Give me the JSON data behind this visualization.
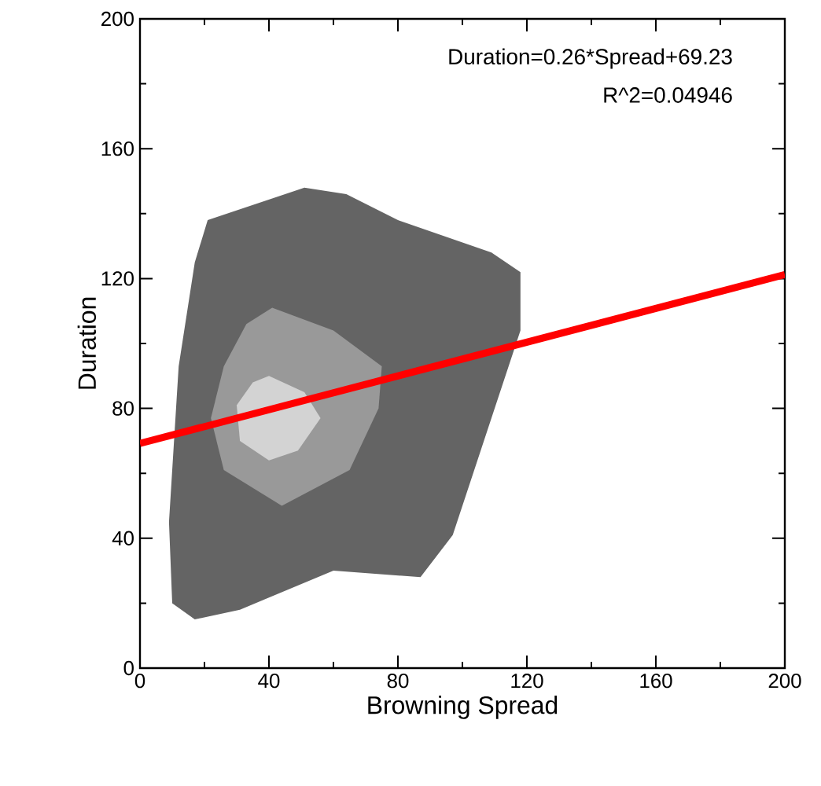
{
  "chart_data": {
    "type": "area",
    "xlabel": "Browning Spread",
    "ylabel": "Duration",
    "annotations": [
      "Duration=0.26*Spread+69.23",
      "R^2=0.04946"
    ],
    "xlim": [
      0,
      200
    ],
    "ylim": [
      0,
      200
    ],
    "xticks": [
      0,
      40,
      80,
      120,
      160,
      200
    ],
    "yticks": [
      0,
      40,
      80,
      120,
      160,
      200
    ],
    "grid": false,
    "series": [
      {
        "color": "#646464",
        "x": [
          21,
          17,
          12,
          9,
          10,
          17,
          31,
          60,
          87,
          97,
          109,
          118,
          118,
          109,
          80,
          64,
          51
        ],
        "values": [
          138,
          125,
          93,
          45,
          20,
          15,
          18,
          30,
          28,
          41,
          77,
          104,
          122,
          128,
          138,
          146,
          148
        ]
      },
      {
        "color": "#999999",
        "x": [
          41,
          60,
          75,
          74,
          65,
          44,
          26,
          22,
          26,
          33
        ],
        "values": [
          111,
          104,
          93,
          80,
          61,
          50,
          61,
          77,
          93,
          106
        ]
      },
      {
        "color": "#d3d3d3",
        "x": [
          40,
          51,
          56,
          49,
          40,
          31,
          30,
          35
        ],
        "values": [
          90,
          85,
          77,
          67,
          64,
          70,
          81,
          88
        ]
      },
      {
        "type": "line",
        "color": "#ff0000",
        "x": [
          0,
          200
        ],
        "values": [
          69.2,
          121.2
        ]
      }
    ]
  }
}
